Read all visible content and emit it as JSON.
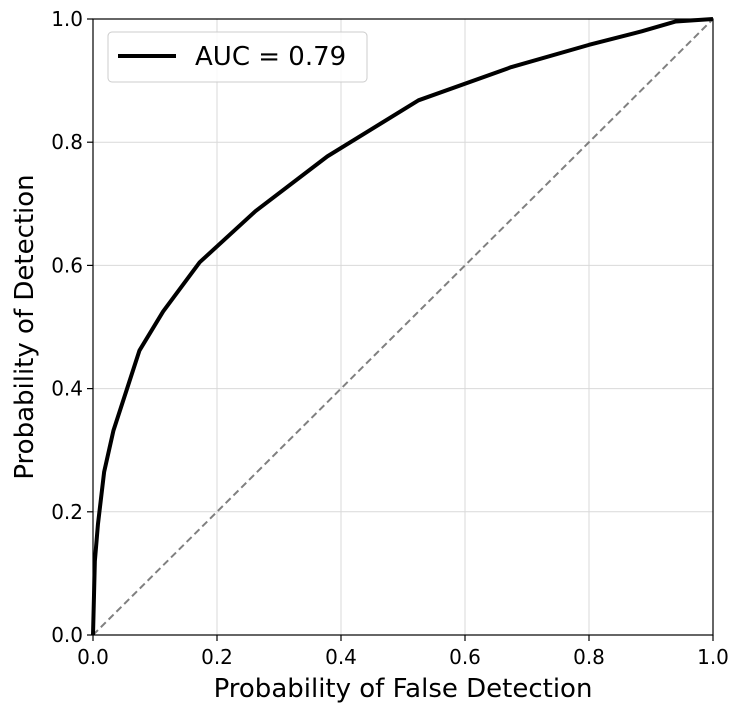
{
  "chart_data": {
    "type": "line",
    "title": "",
    "xlabel": "Probability of False Detection",
    "ylabel": "Probability of Detection",
    "xlim": [
      0.0,
      1.0
    ],
    "ylim": [
      0.0,
      1.0
    ],
    "grid": true,
    "legend_placement": "top-left",
    "x_ticks": [
      "0.0",
      "0.2",
      "0.4",
      "0.6",
      "0.8",
      "1.0"
    ],
    "y_ticks": [
      "0.0",
      "0.2",
      "0.4",
      "0.6",
      "0.8",
      "1.0"
    ],
    "series": [
      {
        "name": "AUC = 0.79",
        "color": "#000000",
        "style": "solid",
        "x": [
          0.0,
          0.003,
          0.008,
          0.018,
          0.033,
          0.075,
          0.113,
          0.172,
          0.262,
          0.378,
          0.525,
          0.675,
          0.8,
          0.885,
          0.94,
          1.0
        ],
        "y": [
          0.0,
          0.12,
          0.18,
          0.265,
          0.332,
          0.462,
          0.525,
          0.605,
          0.688,
          0.777,
          0.868,
          0.922,
          0.958,
          0.98,
          0.996,
          1.0
        ]
      },
      {
        "color": "#808080",
        "style": "dashed",
        "x": [
          0.0,
          1.0
        ],
        "y": [
          0.0,
          1.0
        ]
      }
    ]
  }
}
